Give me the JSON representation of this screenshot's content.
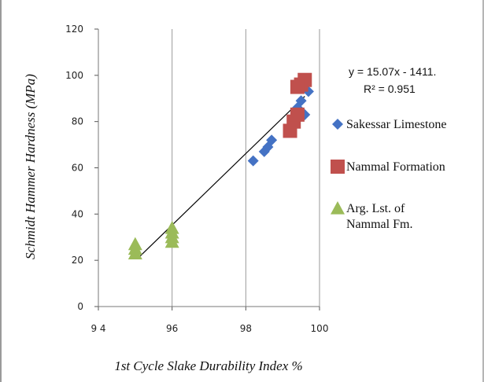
{
  "chart_data": {
    "type": "scatter",
    "title": "",
    "xlabel": "1st Cycle Slake Durability Index %",
    "ylabel": "Schmidt Hammer Hardness (MPa)",
    "xlim": [
      94,
      100
    ],
    "ylim": [
      0,
      120
    ],
    "xticks": [
      "9 4",
      "96",
      "98",
      "100"
    ],
    "yticks": [
      "0",
      "20",
      "40",
      "60",
      "80",
      "100",
      "120"
    ],
    "grid": "vertical",
    "legend_position": "right",
    "equation": "y = 15.07x - 1411.",
    "r_squared": "R² = 0.951",
    "trendline": {
      "x": [
        95.1,
        99.6
      ],
      "y": [
        21.3,
        90.9
      ]
    },
    "series": [
      {
        "name": "Sakessar Limestone",
        "marker": "diamond",
        "color": "#4472c4",
        "points": [
          [
            98.2,
            63
          ],
          [
            98.5,
            67
          ],
          [
            98.6,
            69
          ],
          [
            98.7,
            72
          ],
          [
            99.4,
            86
          ],
          [
            99.5,
            89
          ],
          [
            99.6,
            83
          ],
          [
            99.7,
            93
          ]
        ]
      },
      {
        "name": "Nammal Formation",
        "marker": "square",
        "color": "#c0504d",
        "points": [
          [
            99.2,
            76
          ],
          [
            99.3,
            80
          ],
          [
            99.4,
            83
          ],
          [
            99.5,
            96
          ],
          [
            99.6,
            98
          ],
          [
            99.4,
            95
          ]
        ]
      },
      {
        "name": "Arg. Lst. of Nammal Fm.",
        "legend_lines": [
          "Arg. Lst. of",
          "Nammal Fm."
        ],
        "marker": "triangle",
        "color": "#9bbb59",
        "points": [
          [
            95.0,
            23
          ],
          [
            95.0,
            25
          ],
          [
            95.0,
            27
          ],
          [
            96.0,
            28
          ],
          [
            96.0,
            30
          ],
          [
            96.0,
            32
          ],
          [
            96.0,
            34
          ]
        ]
      }
    ]
  }
}
